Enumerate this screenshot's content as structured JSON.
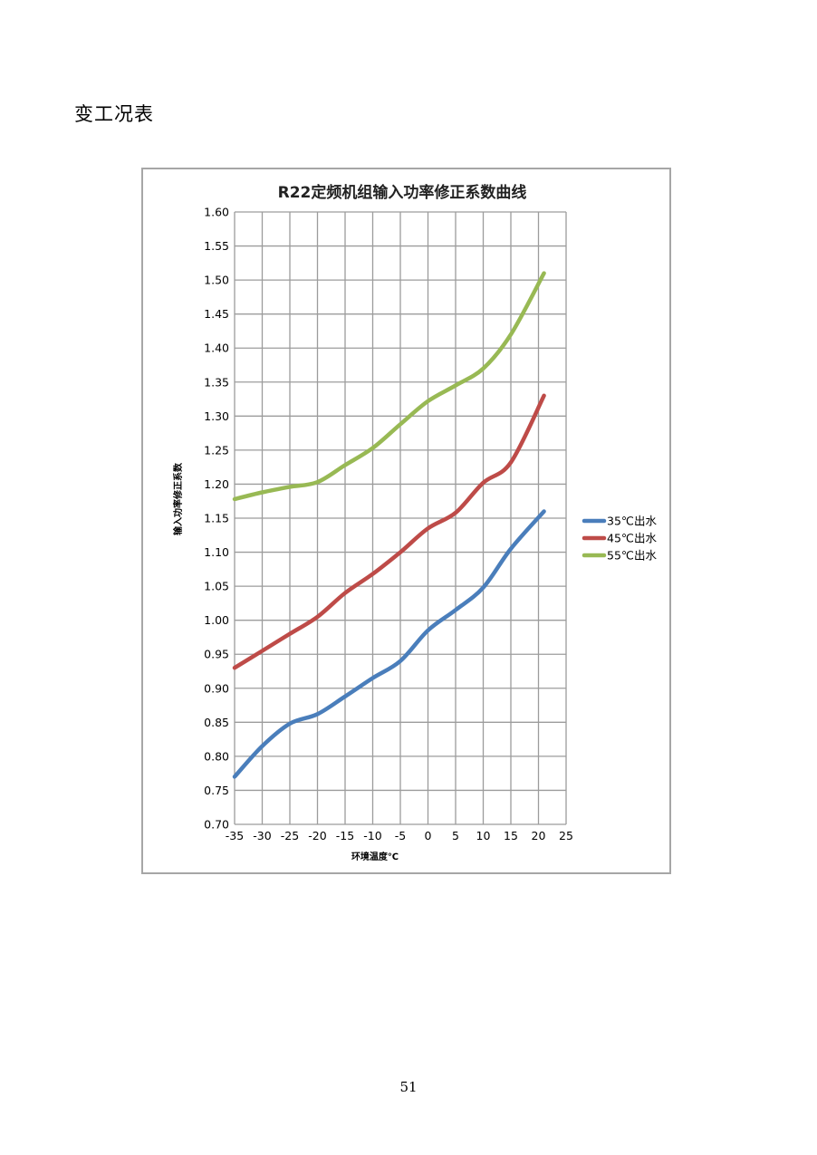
{
  "page": {
    "section_title": "变工况表",
    "page_number": "51"
  },
  "chart_data": {
    "type": "line",
    "title": "R22定频机组输入功率修正系数曲线",
    "xlabel": "环境温度℃",
    "ylabel": "输入功率修正系数",
    "xlim": [
      -35,
      25
    ],
    "ylim": [
      0.7,
      1.6
    ],
    "x_ticks": [
      -35,
      -30,
      -25,
      -20,
      -15,
      -10,
      -5,
      0,
      5,
      10,
      15,
      20,
      25
    ],
    "y_ticks": [
      0.7,
      0.75,
      0.8,
      0.85,
      0.9,
      0.95,
      1.0,
      1.05,
      1.1,
      1.15,
      1.2,
      1.25,
      1.3,
      1.35,
      1.4,
      1.45,
      1.5,
      1.55,
      1.6
    ],
    "grid": true,
    "legend_position": "right",
    "series": [
      {
        "name": "35℃出水",
        "color": "#4a7ebb",
        "x": [
          -35,
          -30,
          -25,
          -20,
          -15,
          -10,
          -5,
          0,
          5,
          10,
          15,
          21
        ],
        "values": [
          0.77,
          0.815,
          0.848,
          0.862,
          0.888,
          0.915,
          0.94,
          0.985,
          1.015,
          1.048,
          1.105,
          1.16
        ]
      },
      {
        "name": "45℃出水",
        "color": "#be4b48",
        "x": [
          -35,
          -30,
          -25,
          -20,
          -15,
          -10,
          -5,
          0,
          5,
          10,
          15,
          21
        ],
        "values": [
          0.93,
          0.955,
          0.98,
          1.005,
          1.04,
          1.068,
          1.1,
          1.135,
          1.158,
          1.202,
          1.232,
          1.33
        ]
      },
      {
        "name": "55℃出水",
        "color": "#98b954",
        "x": [
          -35,
          -30,
          -25,
          -20,
          -15,
          -10,
          -5,
          0,
          5,
          10,
          15,
          21
        ],
        "values": [
          1.178,
          1.188,
          1.196,
          1.203,
          1.228,
          1.253,
          1.288,
          1.322,
          1.345,
          1.37,
          1.42,
          1.51
        ]
      }
    ]
  }
}
